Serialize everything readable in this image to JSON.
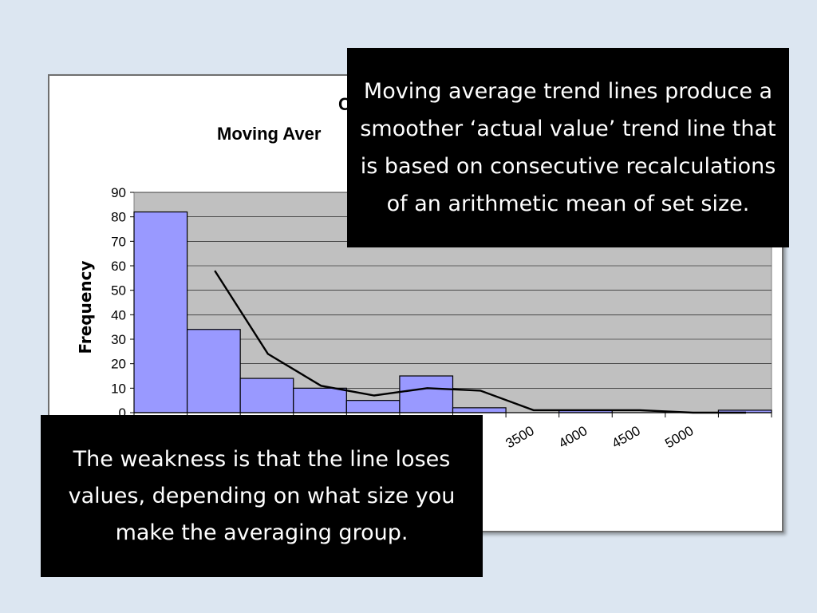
{
  "chart_data": {
    "type": "bar",
    "title": "C",
    "subtitle": "Moving Aver",
    "xlabel": "",
    "ylabel": "Frequency",
    "ylim": [
      0,
      90
    ],
    "yticks": [
      "0",
      "10",
      "20",
      "30",
      "40",
      "50",
      "60",
      "70",
      "80",
      "90"
    ],
    "grid": true,
    "categories": [
      "",
      "",
      "",
      "",
      "",
      "",
      "",
      "",
      "",
      "",
      "",
      ""
    ],
    "xtick_labels": [
      "3500",
      "4000",
      "4500",
      "5000"
    ],
    "series": [
      {
        "values": [
          82,
          34,
          14,
          10,
          5,
          15,
          2,
          0,
          1,
          0,
          0,
          1
        ]
      },
      {
        "type": "line",
        "values": [
          null,
          58,
          24,
          11,
          7,
          10,
          9,
          1,
          1,
          1,
          0,
          0
        ]
      }
    ],
    "colors": {
      "bar": "#9999ff",
      "plot_bg": "#c0c0c0",
      "line": "#000000"
    }
  },
  "callouts": {
    "top": "Moving average trend lines produce a smoother ‘actual value’ trend line that is based on consecutive recalculations of an arithmetic mean of set size.",
    "bottom": "The weakness is that the line loses values, depending on what size you make the averaging group."
  }
}
